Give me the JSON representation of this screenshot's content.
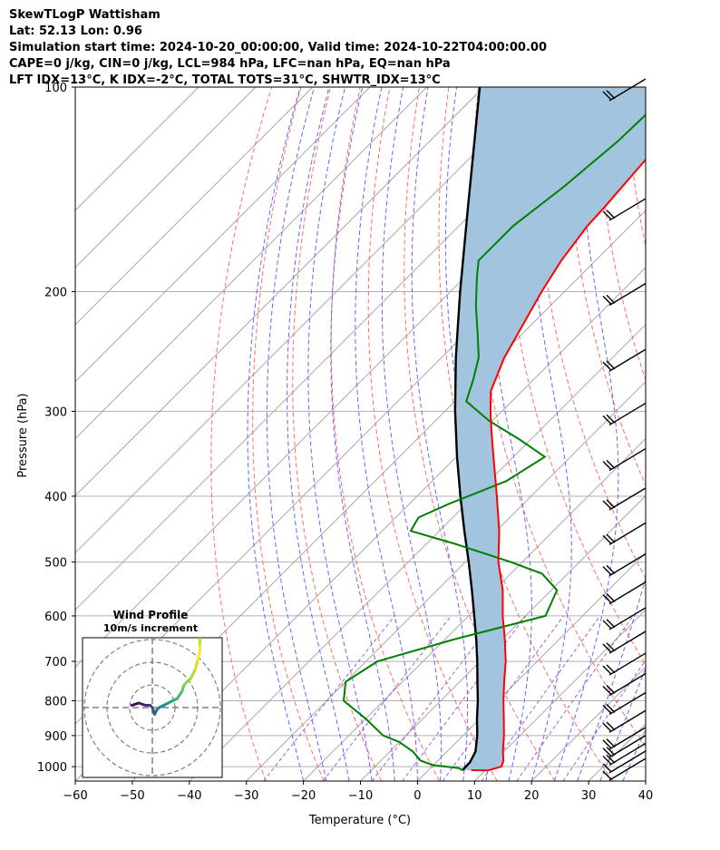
{
  "header": {
    "title": "SkewTLogP Wattisham",
    "location": "Lat: 52.13   Lon: 0.96",
    "times": "Simulation start time: 2024-10-20_00:00:00, Valid time: 2024-10-22T04:00:00.00",
    "indices1": "CAPE=0 j/kg, CIN=0 j/kg, LCL=984 hPa, LFC=nan hPa, EQ=nan hPa",
    "indices2": "LFT IDX=13$^\\circ$C, K IDX=-2$^\\circ$C, TOTAL TOTS=31$^\\circ$C, SHWTR_IDX=13$^\\circ$C"
  },
  "chart_data": {
    "type": "line",
    "chart_kind": "skew-T log-P diagram",
    "xlabel": "Temperature ($^\\circ$C)",
    "ylabel": "Pressure (hPa)",
    "xlim": [
      -60,
      40
    ],
    "ylim_pressure_hPa": [
      1050,
      100
    ],
    "x_ticks": [
      -60,
      -50,
      -40,
      -30,
      -20,
      -10,
      0,
      10,
      20,
      30,
      40
    ],
    "x_tick_labels": [
      "−60",
      "−50",
      "−40",
      "−30",
      "−20",
      "−10",
      "0",
      "10",
      "20",
      "30",
      "40"
    ],
    "y_ticks": [
      100,
      200,
      300,
      400,
      500,
      600,
      700,
      800,
      900,
      1000
    ],
    "series": [
      {
        "name": "Temperature",
        "color": "#ff0000",
        "pressure": [
          1012,
          1013,
          1000,
          980,
          950,
          900,
          850,
          800,
          750,
          700,
          650,
          600,
          550,
          500,
          450,
          400,
          350,
          320,
          300,
          280,
          250,
          200,
          180,
          160,
          150,
          130,
          115,
          100
        ],
        "values": [
          7.5,
          10.5,
          12.2,
          11.5,
          9.8,
          7.2,
          4.2,
          1.0,
          -2.2,
          -5.5,
          -9.5,
          -14.0,
          -18.5,
          -24.2,
          -29.5,
          -36.0,
          -43.5,
          -48.5,
          -52.0,
          -55.5,
          -59.0,
          -64.0,
          -66.0,
          -67.5,
          -67.8,
          -68.8,
          -69.5,
          -70.0
        ]
      },
      {
        "name": "Dewpoint",
        "color": "#008000",
        "pressure": [
          1012,
          1005,
          995,
          980,
          950,
          920,
          900,
          850,
          800,
          750,
          700,
          650,
          600,
          550,
          520,
          500,
          470,
          450,
          430,
          410,
          380,
          350,
          330,
          310,
          290,
          270,
          250,
          230,
          210,
          190,
          180,
          160,
          140,
          120,
          100
        ],
        "values": [
          6.0,
          5.0,
          0.0,
          -3.0,
          -6.0,
          -10.0,
          -14.0,
          -20.0,
          -27.0,
          -30.0,
          -28.0,
          -18.5,
          -6.5,
          -9.0,
          -14.5,
          -22.0,
          -35.0,
          -45.0,
          -46.0,
          -43.0,
          -37.0,
          -34.5,
          -42.0,
          -50.5,
          -58.0,
          -60.5,
          -63.5,
          -68.0,
          -73.0,
          -78.0,
          -80.5,
          -80.5,
          -78.5,
          -77.0,
          -76.5
        ]
      },
      {
        "name": "Parcel profile",
        "color": "#000000",
        "pressure": [
          1012,
          985,
          950,
          900,
          850,
          800,
          750,
          700,
          650,
          600,
          550,
          500,
          450,
          400,
          350,
          300,
          250,
          200,
          150,
          100
        ],
        "values": [
          6.0,
          5.9,
          5.0,
          2.5,
          -0.5,
          -3.5,
          -6.9,
          -10.5,
          -14.5,
          -19.0,
          -23.9,
          -29.4,
          -35.6,
          -42.4,
          -49.9,
          -58.2,
          -67.5,
          -78.3,
          -91.8,
          -110.7
        ]
      }
    ],
    "shading": {
      "name": "CIN/CAPE area between parcel and temperature",
      "color": "#a3c4de"
    },
    "background_lines": [
      "dry adiabats (red dashed)",
      "moist adiabats (blue dashed)",
      "mixing ratio lines (purple dashed)",
      "isotherms (gray)"
    ],
    "wind_barbs_pressure": [
      1000,
      975,
      950,
      925,
      900,
      850,
      800,
      750,
      700,
      650,
      600,
      550,
      500,
      450,
      400,
      350,
      300,
      250,
      200,
      150,
      100
    ],
    "hodograph": {
      "title": "Wind Profile",
      "subtitle": "10m/s increment",
      "rings": [
        10,
        20,
        30
      ],
      "u": [
        -9,
        -6,
        -3,
        -1,
        0,
        1,
        2,
        3,
        5,
        7,
        9,
        11,
        13,
        14,
        17,
        19,
        20,
        21,
        21,
        21,
        20
      ],
      "v": [
        1,
        2,
        1,
        1,
        0,
        -3,
        -1,
        0,
        1,
        2,
        3,
        4,
        7,
        10,
        13,
        17,
        21,
        25,
        28,
        31,
        32
      ]
    }
  }
}
